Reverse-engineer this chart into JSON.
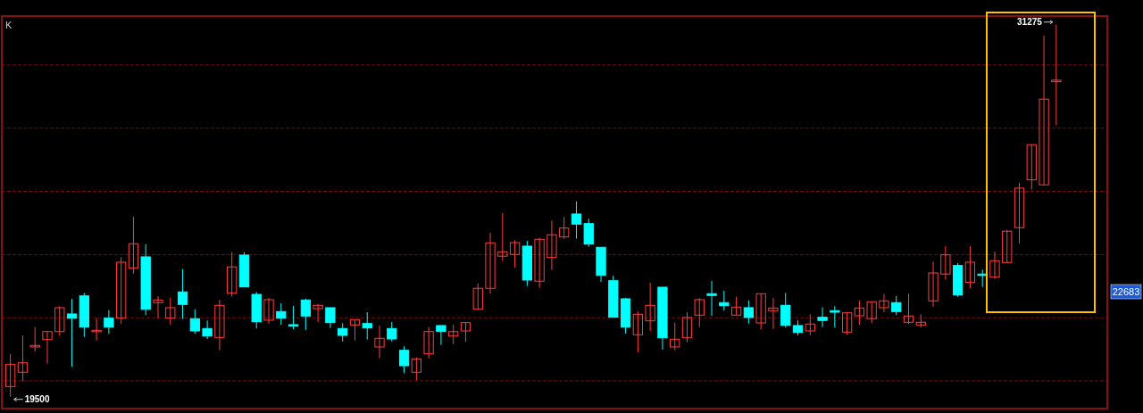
{
  "chart_data": {
    "type": "candlestick",
    "categories": [
      null,
      null,
      null,
      null,
      null,
      null,
      null,
      null,
      null,
      null,
      null,
      null,
      null,
      null,
      null,
      null,
      null,
      null,
      null,
      null,
      null,
      null,
      null,
      null,
      null,
      null,
      null,
      null,
      null,
      null,
      null,
      null,
      null,
      null,
      null,
      null,
      null,
      null,
      null,
      null,
      null,
      null,
      null,
      null,
      null,
      null,
      null,
      null,
      null,
      null,
      null,
      null,
      null,
      null,
      null,
      null,
      null,
      null,
      null,
      null,
      null,
      null,
      null,
      null,
      null,
      null,
      null,
      null,
      null,
      null,
      null,
      null,
      null,
      null,
      null,
      null,
      null,
      null,
      null,
      null,
      null,
      null,
      null,
      null,
      null,
      null
    ],
    "ohlc": [
      [
        19822,
        20856,
        19500,
        20528
      ],
      [
        20275,
        21441,
        19990,
        20573
      ],
      [
        21073,
        21703,
        20924,
        21121
      ],
      [
        21308,
        21562,
        20545,
        21562
      ],
      [
        21562,
        22365,
        21421,
        22317
      ],
      [
        22119,
        22599,
        20452,
        21986
      ],
      [
        22692,
        22788,
        21393,
        21703
      ],
      [
        21575,
        21986,
        21280,
        21600
      ],
      [
        21986,
        22240,
        21489,
        21703
      ],
      [
        21986,
        23918,
        21800,
        23757
      ],
      [
        23568,
        25190,
        23398,
        24342
      ],
      [
        23927,
        24322,
        22082,
        22268
      ],
      [
        22478,
        22684,
        21986,
        22562
      ],
      [
        21986,
        22627,
        21780,
        22317
      ],
      [
        22817,
        23540,
        21958,
        22421
      ],
      [
        21969,
        22268,
        21497,
        21582
      ],
      [
        21658,
        21913,
        21328,
        21421
      ],
      [
        21376,
        22571,
        20969,
        22393
      ],
      [
        22777,
        24076,
        22664,
        23608
      ],
      [
        23983,
        24076,
        22975,
        22975
      ],
      [
        22740,
        22817,
        21658,
        21873
      ],
      [
        21921,
        22627,
        21816,
        22571
      ],
      [
        22196,
        22458,
        21780,
        21986
      ],
      [
        21780,
        22373,
        21639,
        21732
      ],
      [
        22562,
        22599,
        21610,
        22054
      ],
      [
        22288,
        22438,
        21865,
        22393
      ],
      [
        22317,
        22317,
        21675,
        21845
      ],
      [
        21658,
        21828,
        21251,
        21441
      ],
      [
        21771,
        21941,
        21280,
        21941
      ],
      [
        21816,
        22175,
        21308,
        21675
      ],
      [
        21074,
        21752,
        20715,
        21348
      ],
      [
        21658,
        21865,
        21251,
        21328
      ],
      [
        20969,
        21093,
        20246,
        20480
      ],
      [
        20274,
        20743,
        20008,
        20698
      ],
      [
        20856,
        21703,
        20715,
        21562
      ],
      [
        21752,
        21752,
        21138,
        21562
      ],
      [
        21421,
        21780,
        21167,
        21562
      ],
      [
        21582,
        21845,
        21235,
        21845
      ],
      [
        22268,
        23088,
        22268,
        22930
      ],
      [
        22930,
        24690,
        22768,
        24370
      ],
      [
        23947,
        25311,
        23794,
        24088
      ],
      [
        24003,
        24455,
        23588,
        24379
      ],
      [
        24266,
        24435,
        23003,
        23192
      ],
      [
        23156,
        24529,
        22946,
        24483
      ],
      [
        23907,
        25077,
        23512,
        24625
      ],
      [
        24557,
        25190,
        24500,
        24839
      ],
      [
        25283,
        25678,
        24500,
        24963
      ],
      [
        24980,
        25133,
        24246,
        24331
      ],
      [
        24229,
        24229,
        23136,
        23342
      ],
      [
        23172,
        23334,
        22014,
        22014
      ],
      [
        22599,
        22627,
        21497,
        21703
      ],
      [
        21460,
        22195,
        20904,
        22110
      ],
      [
        21901,
        23108,
        21582,
        22393
      ],
      [
        22966,
        22966,
        20989,
        21364
      ],
      [
        21074,
        21845,
        20969,
        21319
      ],
      [
        21364,
        22175,
        21223,
        22006
      ],
      [
        22082,
        22627,
        21703,
        22571
      ],
      [
        22760,
        23164,
        22062,
        22704
      ],
      [
        22478,
        22853,
        22223,
        22382
      ],
      [
        22082,
        22664,
        22082,
        22336
      ],
      [
        22317,
        22551,
        21816,
        22006
      ],
      [
        21836,
        22760,
        21630,
        22760
      ],
      [
        22223,
        22627,
        21647,
        22308
      ],
      [
        22393,
        22788,
        21687,
        21760
      ],
      [
        21752,
        21913,
        21441,
        21534
      ],
      [
        21582,
        22110,
        21441,
        21800
      ],
      [
        22014,
        22325,
        21703,
        21913
      ],
      [
        22223,
        22365,
        21687,
        22175
      ],
      [
        21545,
        22155,
        21469,
        22155
      ],
      [
        22062,
        22551,
        21771,
        22308
      ],
      [
        21969,
        22506,
        21828,
        22506
      ],
      [
        22317,
        22740,
        22175,
        22534
      ],
      [
        22478,
        22692,
        22082,
        22195
      ],
      [
        21856,
        22760,
        21800,
        22054
      ],
      [
        21771,
        22110,
        21687,
        21856
      ],
      [
        22534,
        23777,
        22345,
        23418
      ],
      [
        23382,
        24266,
        23212,
        23992
      ],
      [
        23653,
        23729,
        22664,
        22720
      ],
      [
        23116,
        24266,
        22930,
        23757
      ],
      [
        23382,
        23523,
        22975,
        23353
      ],
      [
        23285,
        24088,
        23229,
        23805
      ],
      [
        23749,
        24783,
        23749,
        24738
      ],
      [
        24851,
        26272,
        24359,
        26102
      ],
      [
        26365,
        27478,
        26054,
        27478
      ],
      [
        26207,
        30933,
        26207,
        28919
      ],
      [
        29472,
        31275,
        28088,
        29520
      ]
    ],
    "colors": [
      "#ff3c3c",
      "#ff3c3c",
      "#ff3c3c",
      "#ff3c3c",
      "#ff3c3c",
      "#00ffff",
      "#00ffff",
      "#ff3c3c",
      "#00ffff",
      "#ff3c3c",
      "#ff3c3c",
      "#00ffff",
      "#ff3c3c",
      "#ff3c3c",
      "#00ffff",
      "#00ffff",
      "#00ffff",
      "#ff3c3c",
      "#ff3c3c",
      "#00ffff",
      "#00ffff",
      "#ff3c3c",
      "#00ffff",
      "#00ffff",
      "#00ffff",
      "#ff3c3c",
      "#00ffff",
      "#00ffff",
      "#ff3c3c",
      "#00ffff",
      "#ff3c3c",
      "#00ffff",
      "#00ffff",
      "#ff3c3c",
      "#ff3c3c",
      "#00ffff",
      "#ff3c3c",
      "#ff3c3c",
      "#ff3c3c",
      "#ff3c3c",
      "#ff3c3c",
      "#ff3c3c",
      "#00ffff",
      "#ff3c3c",
      "#ff3c3c",
      "#ff3c3c",
      "#00ffff",
      "#00ffff",
      "#00ffff",
      "#00ffff",
      "#00ffff",
      "#ff3c3c",
      "#ff3c3c",
      "#00ffff",
      "#ff3c3c",
      "#ff3c3c",
      "#ff3c3c",
      "#00ffff",
      "#00ffff",
      "#ff3c3c",
      "#00ffff",
      "#ff3c3c",
      "#ff3c3c",
      "#00ffff",
      "#00ffff",
      "#ff3c3c",
      "#00ffff",
      "#00ffff",
      "#ff3c3c",
      "#ff3c3c",
      "#ff3c3c",
      "#ff3c3c",
      "#00ffff",
      "#ff3c3c",
      "#ff3c3c",
      "#ff3c3c",
      "#ff3c3c",
      "#00ffff",
      "#ff3c3c",
      "#00ffff",
      "#ff3c3c",
      "#ff3c3c",
      "#ff3c3c",
      "#ff3c3c",
      "#ff3c3c",
      "#ff3c3c"
    ],
    "ylim": [
      19125,
      31550
    ],
    "yticks": [
      {
        "value": 20000,
        "label": null
      },
      {
        "value": 22000,
        "label": null
      },
      {
        "value": 24000,
        "label": null
      },
      {
        "value": 26000,
        "label": null
      },
      {
        "value": 28000,
        "label": null
      },
      {
        "value": 30000,
        "label": null
      }
    ],
    "grid": "y",
    "annotations": [
      "K",
      "31275",
      "19500",
      "22683"
    ]
  }
}
